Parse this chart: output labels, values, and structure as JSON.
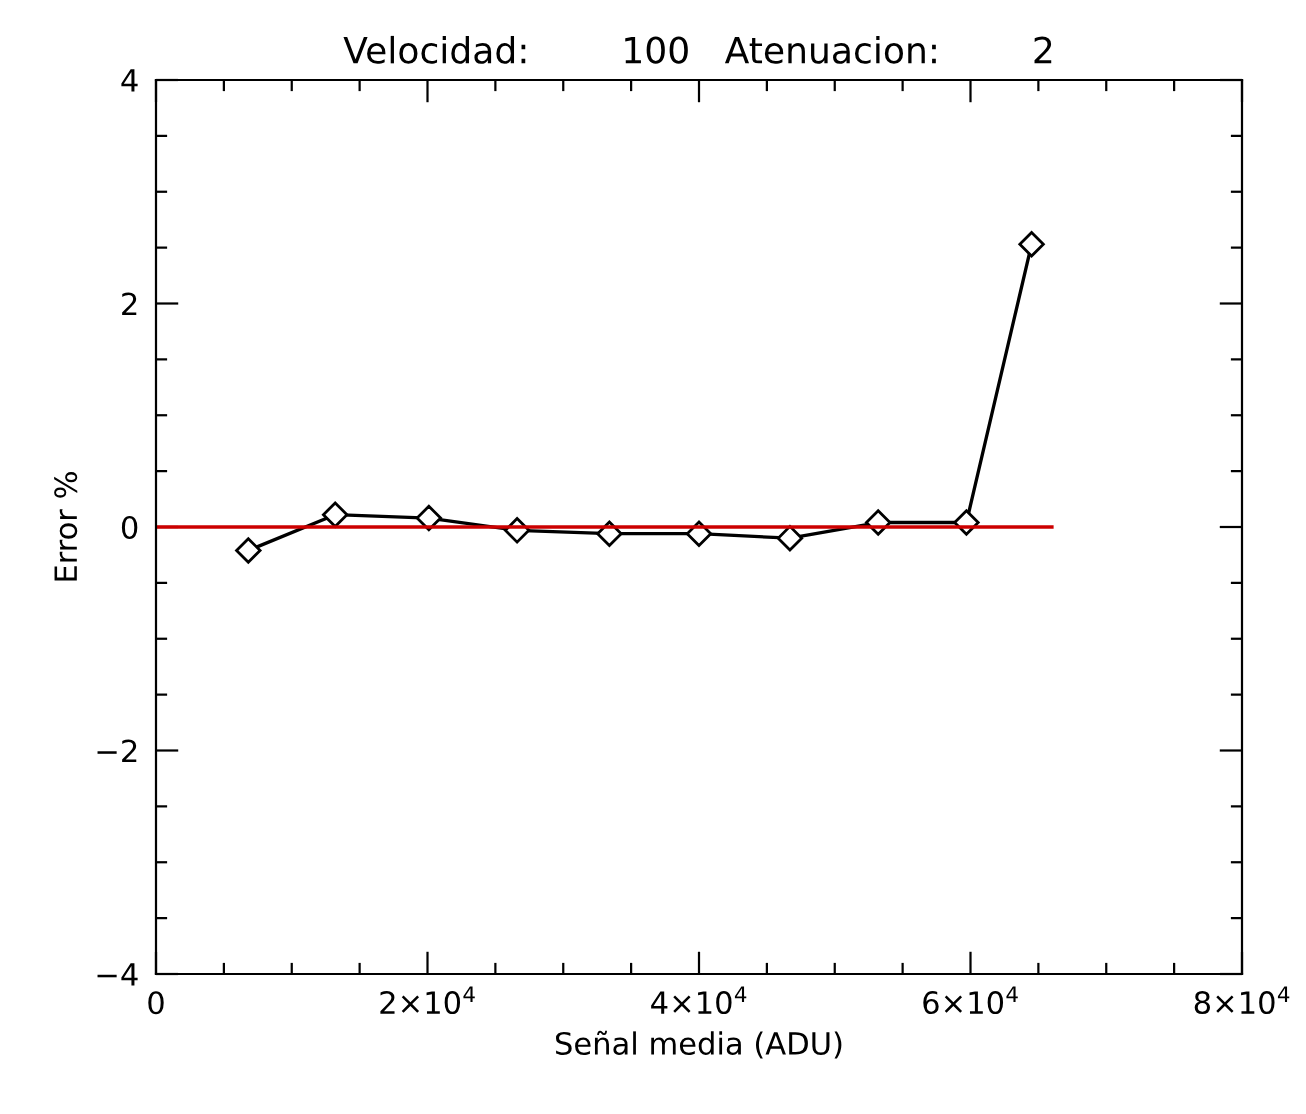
{
  "chart_data": {
    "type": "line",
    "title": "Velocidad:        100   Atenuacion:        2",
    "xlabel": "Señal media (ADU)",
    "ylabel": "Error %",
    "xlim": [
      0,
      80000
    ],
    "ylim": [
      -4,
      4
    ],
    "xticks": [
      {
        "value": 0,
        "label": "0"
      },
      {
        "value": 5000,
        "label": null
      },
      {
        "value": 10000,
        "label": null
      },
      {
        "value": 15000,
        "label": null
      },
      {
        "value": 20000,
        "label": "2×10$^{4}$"
      },
      {
        "value": 25000,
        "label": null
      },
      {
        "value": 30000,
        "label": null
      },
      {
        "value": 35000,
        "label": null
      },
      {
        "value": 40000,
        "label": "4×10$^{4}$"
      },
      {
        "value": 45000,
        "label": null
      },
      {
        "value": 50000,
        "label": null
      },
      {
        "value": 55000,
        "label": null
      },
      {
        "value": 60000,
        "label": "6×10$^{4}$"
      },
      {
        "value": 65000,
        "label": null
      },
      {
        "value": 70000,
        "label": null
      },
      {
        "value": 75000,
        "label": null
      },
      {
        "value": 80000,
        "label": "8×10$^{4}$"
      }
    ],
    "yticks": [
      {
        "value": -4,
        "label": "−4"
      },
      {
        "value": -3.5,
        "label": null
      },
      {
        "value": -3,
        "label": null
      },
      {
        "value": -2.5,
        "label": null
      },
      {
        "value": -2,
        "label": "−2"
      },
      {
        "value": -1.5,
        "label": null
      },
      {
        "value": -1,
        "label": null
      },
      {
        "value": -0.5,
        "label": null
      },
      {
        "value": 0,
        "label": "0"
      },
      {
        "value": 0.5,
        "label": null
      },
      {
        "value": 1,
        "label": null
      },
      {
        "value": 1.5,
        "label": null
      },
      {
        "value": 2,
        "label": "2"
      },
      {
        "value": 2.5,
        "label": null
      },
      {
        "value": 3,
        "label": null
      },
      {
        "value": 3.5,
        "label": null
      },
      {
        "value": 4,
        "label": "4"
      }
    ],
    "grid": false,
    "series": [
      {
        "color": "#000000",
        "marker": "diamond",
        "x": [
          6800,
          13200,
          20100,
          26600,
          33400,
          40000,
          46700,
          53200,
          59700,
          64500
        ],
        "values": [
          -0.21,
          0.11,
          0.08,
          -0.03,
          -0.06,
          -0.06,
          -0.1,
          0.04,
          0.04,
          2.53
        ]
      },
      {
        "color": "#cc0000",
        "marker": "none",
        "x": [
          0,
          66000
        ],
        "values": [
          0,
          0
        ]
      }
    ]
  }
}
